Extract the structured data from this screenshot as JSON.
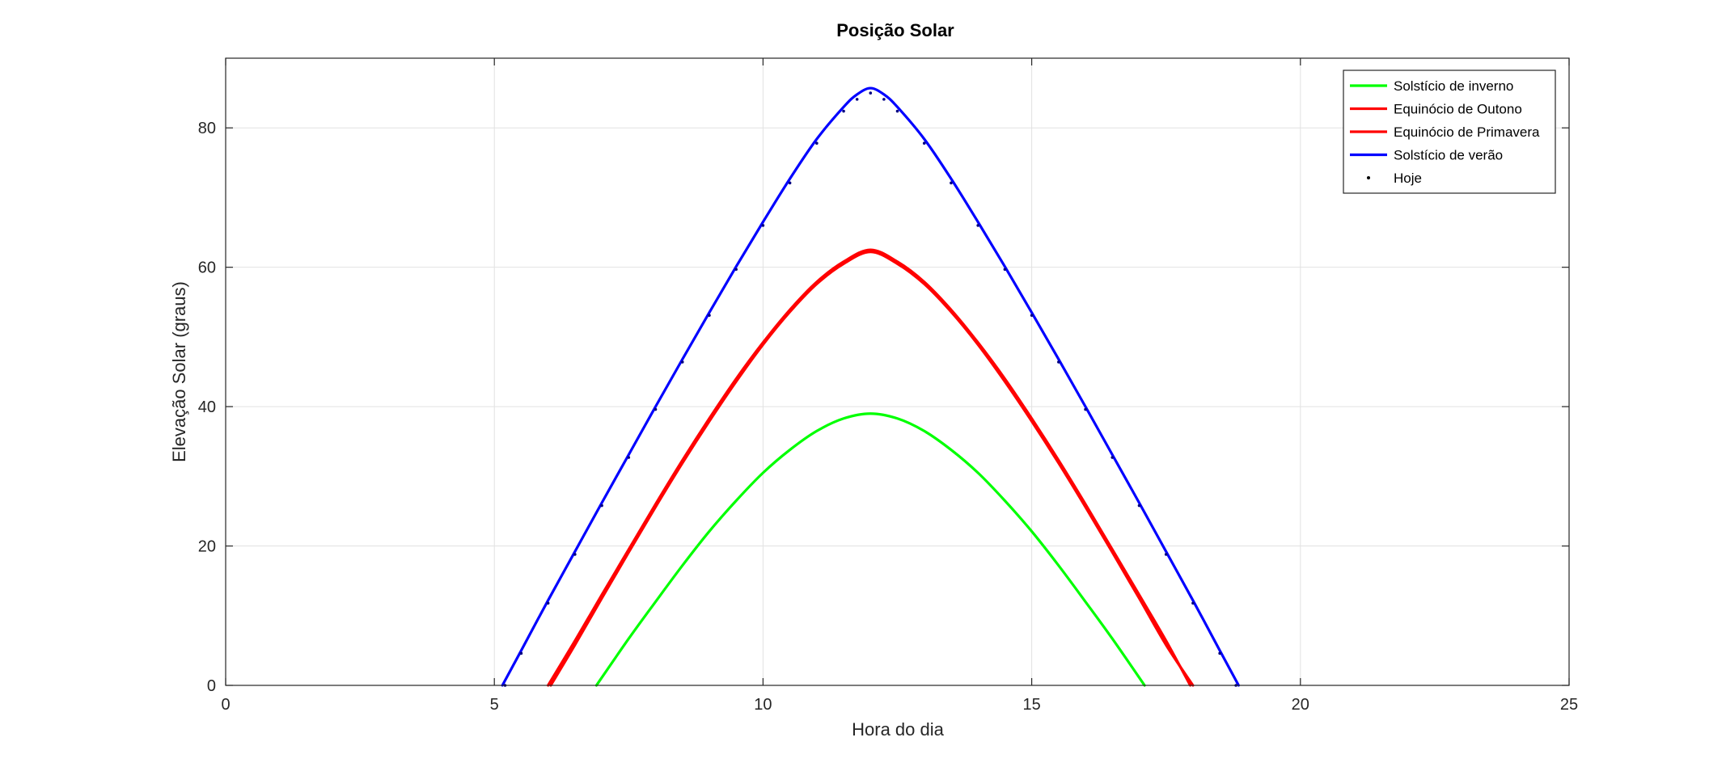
{
  "chart_data": {
    "type": "line",
    "title": "Posição Solar",
    "xlabel": "Hora do dia",
    "ylabel": "Elevação Solar (graus)",
    "xlim": [
      0,
      25
    ],
    "ylim": [
      0,
      90
    ],
    "xticks": [
      0,
      5,
      10,
      15,
      20,
      25
    ],
    "yticks": [
      0,
      20,
      40,
      60,
      80
    ],
    "xtick_labels": [
      "0",
      "5",
      "10",
      "15",
      "20",
      "25"
    ],
    "ytick_labels": [
      "0",
      "20",
      "40",
      "60",
      "80"
    ],
    "grid": true,
    "legend_position": "top-right",
    "series": [
      {
        "name": "Solstício de inverno",
        "color": "#00ff00",
        "style": "line",
        "x": [
          6.9,
          7.5,
          8.0,
          8.5,
          9.0,
          9.5,
          10.0,
          10.5,
          11.0,
          11.5,
          12.0,
          12.5,
          13.0,
          13.5,
          14.0,
          14.5,
          15.0,
          15.5,
          16.0,
          16.5,
          17.1
        ],
        "y": [
          0,
          6.7,
          12.0,
          17.2,
          22.1,
          26.5,
          30.5,
          33.8,
          36.5,
          38.3,
          39.0,
          38.3,
          36.5,
          33.8,
          30.5,
          26.5,
          22.1,
          17.2,
          12.0,
          6.7,
          0
        ]
      },
      {
        "name": "Equinócio de Outono",
        "color": "#ff0000",
        "style": "line",
        "x": [
          6.05,
          6.5,
          7.0,
          7.5,
          8.0,
          8.5,
          9.0,
          9.5,
          10.0,
          10.5,
          11.0,
          11.5,
          12.0,
          12.5,
          13.0,
          13.5,
          14.0,
          14.5,
          15.0,
          15.5,
          16.0,
          16.5,
          17.0,
          17.5,
          18.0
        ],
        "y": [
          0,
          5.8,
          12.5,
          19.1,
          25.6,
          31.9,
          37.9,
          43.6,
          48.9,
          53.6,
          57.6,
          60.5,
          62.2,
          60.5,
          57.6,
          53.6,
          48.9,
          43.6,
          37.9,
          31.9,
          25.6,
          19.1,
          12.5,
          5.8,
          0
        ]
      },
      {
        "name": "Equinócio de Primavera",
        "color": "#ff0000",
        "style": "line",
        "x": [
          6.0,
          6.5,
          7.0,
          7.5,
          8.0,
          8.5,
          9.0,
          9.5,
          10.0,
          10.5,
          11.0,
          11.5,
          12.0,
          12.5,
          13.0,
          13.5,
          14.0,
          14.5,
          15.0,
          15.5,
          16.0,
          16.5,
          17.0,
          17.5,
          17.95
        ],
        "y": [
          0,
          6.4,
          13.0,
          19.5,
          26.0,
          32.3,
          38.3,
          44.0,
          49.2,
          53.9,
          57.9,
          60.8,
          62.5,
          60.8,
          57.9,
          53.9,
          49.2,
          44.0,
          38.3,
          32.3,
          26.0,
          19.5,
          13.0,
          6.4,
          0
        ]
      },
      {
        "name": "Solstício de verão",
        "color": "#0000ff",
        "style": "line",
        "x": [
          5.15,
          5.5,
          6.0,
          6.5,
          7.0,
          7.5,
          8.0,
          8.5,
          9.0,
          9.5,
          10.0,
          10.5,
          11.0,
          11.5,
          11.75,
          12.0,
          12.25,
          12.5,
          13.0,
          13.5,
          14.0,
          14.5,
          15.0,
          15.5,
          16.0,
          16.5,
          17.0,
          17.5,
          18.0,
          18.5,
          18.85
        ],
        "y": [
          0,
          5.0,
          12.2,
          19.2,
          26.2,
          33.1,
          40.0,
          46.8,
          53.5,
          60.1,
          66.5,
          72.7,
          78.4,
          83.0,
          84.8,
          85.7,
          84.8,
          83.0,
          78.4,
          72.7,
          66.5,
          60.1,
          53.5,
          46.8,
          40.0,
          33.1,
          26.2,
          19.2,
          12.2,
          5.0,
          0
        ]
      },
      {
        "name": "Hoje",
        "color": "#000080",
        "style": "dots",
        "x": [
          5.2,
          5.5,
          6.0,
          6.5,
          7.0,
          7.5,
          8.0,
          8.5,
          9.0,
          9.5,
          10.0,
          10.5,
          11.0,
          11.5,
          11.75,
          12.0,
          12.25,
          12.5,
          13.0,
          13.5,
          14.0,
          14.5,
          15.0,
          15.5,
          16.0,
          16.5,
          17.0,
          17.5,
          18.0,
          18.5,
          18.8
        ],
        "y": [
          0,
          4.6,
          11.8,
          18.8,
          25.8,
          32.7,
          39.6,
          46.4,
          53.1,
          59.7,
          66.0,
          72.1,
          77.8,
          82.4,
          84.1,
          85.0,
          84.1,
          82.4,
          77.8,
          72.1,
          66.0,
          59.7,
          53.1,
          46.4,
          39.6,
          32.7,
          25.8,
          18.8,
          11.8,
          4.6,
          0
        ]
      }
    ]
  }
}
